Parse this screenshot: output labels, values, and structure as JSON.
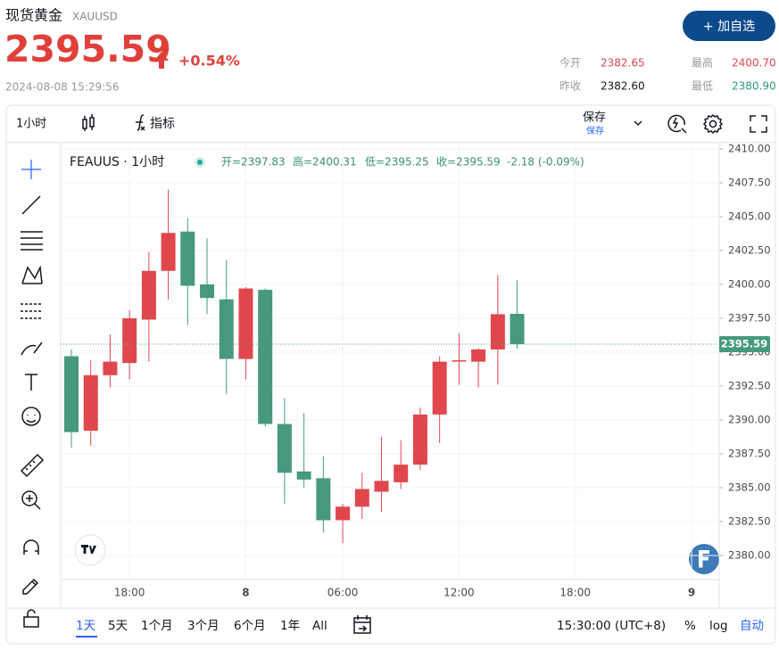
{
  "header": {
    "title": "现货黄金",
    "symbol": "XAUUSD",
    "price": "2395.59",
    "change": "+0.54%",
    "datetime": "2024-08-08 15:29:56",
    "button": "+ 加自选",
    "stats": [
      {
        "label": "今开",
        "value": "2382.65"
      },
      {
        "label": "最高",
        "value": "2400.70"
      },
      {
        "label": "昨收",
        "value": "2382.60"
      },
      {
        "label": "最低",
        "value": "2380.90"
      }
    ]
  },
  "toolbar": {
    "interval": "1小时",
    "indicators": "指标",
    "save": "保存",
    "save_sub": "保存"
  },
  "chart_data": {
    "type": "candlestick",
    "title": "FEAUUS · 1小时",
    "legend": {
      "open": "开=2397.83",
      "high": "高=2400.31",
      "low": "低=2395.25",
      "close": "收=2395.59",
      "change": "-2.18 (-0.09%)"
    },
    "categories": [
      null,
      null,
      null,
      "18:00",
      null,
      null,
      null,
      null,
      null,
      "8",
      null,
      null,
      null,
      null,
      "06:00",
      null,
      null,
      null,
      null,
      null,
      "12:00",
      null,
      null,
      null,
      null,
      null,
      "18:00",
      null,
      null,
      null,
      null,
      null,
      "9"
    ],
    "open": [
      2394.7,
      2389.2,
      2393.3,
      2394.2,
      2397.4,
      2401.0,
      2403.9,
      2400.0,
      2398.9,
      2394.5,
      2399.6,
      2389.7,
      2386.2,
      2385.7,
      2382.6,
      2383.6,
      2384.7,
      2385.4,
      2386.7,
      2390.4,
      2394.3,
      2394.3,
      2395.2,
      2397.83,
      null,
      null,
      null,
      null,
      null,
      null,
      null,
      null,
      null
    ],
    "high": [
      2395.2,
      2394.4,
      2396.3,
      2398.1,
      2402.4,
      2407.0,
      2404.9,
      2403.4,
      2401.8,
      2399.8,
      2399.7,
      2391.6,
      2390.5,
      2387.3,
      2383.8,
      2386.1,
      2388.75,
      2388.5,
      2390.9,
      2394.7,
      2396.4,
      2395.3,
      2400.7,
      2400.31,
      null,
      null,
      null,
      null,
      null,
      null,
      null,
      null,
      null
    ],
    "low": [
      2387.96,
      2388.1,
      2392.4,
      2393.0,
      2394.3,
      2398.9,
      2397.0,
      2397.8,
      2391.9,
      2393.0,
      2389.5,
      2383.8,
      2385.0,
      2381.7,
      2380.9,
      2382.7,
      2383.2,
      2384.9,
      2386.3,
      2388.3,
      2392.6,
      2392.4,
      2392.6,
      2395.25,
      null,
      null,
      null,
      null,
      null,
      null,
      null,
      null,
      null
    ],
    "close": [
      2389.1,
      2393.3,
      2394.3,
      2397.5,
      2401.0,
      2403.8,
      2399.9,
      2399.0,
      2394.5,
      2399.7,
      2389.7,
      2386.1,
      2385.6,
      2382.6,
      2383.6,
      2384.9,
      2385.5,
      2386.7,
      2390.4,
      2394.3,
      2394.4,
      2395.2,
      2397.8,
      2395.59,
      null,
      null,
      null,
      null,
      null,
      null,
      null,
      null,
      null
    ],
    "ylim": [
      2378.22,
      2410.46
    ],
    "yticks": [
      {
        "value": 2410,
        "label": "2410.00"
      },
      {
        "value": 2407.5,
        "label": "2407.50"
      },
      {
        "value": 2405,
        "label": "2405.00"
      },
      {
        "value": 2402.5,
        "label": "2402.50"
      },
      {
        "value": 2400,
        "label": "2400.00"
      },
      {
        "value": 2397.5,
        "label": "2397.50"
      },
      {
        "value": 2395,
        "label": "2395.00"
      },
      {
        "value": 2392.5,
        "label": "2392.50"
      },
      {
        "value": 2390,
        "label": "2390.00"
      },
      {
        "value": 2387.5,
        "label": "2387.50"
      },
      {
        "value": 2385,
        "label": "2385.00"
      },
      {
        "value": 2382.5,
        "label": "2382.50"
      },
      {
        "value": 2380,
        "label": "2380.00"
      }
    ],
    "last_price": 2395.59,
    "grid": true,
    "up_color": "#e0474c",
    "down_color": "#46997f"
  },
  "range_bar": {
    "ranges": [
      "1天",
      "5天",
      "1个月",
      "3个月",
      "6个月",
      "1年",
      "All"
    ],
    "time": "15:30:00 (UTC+8)",
    "percent": "%",
    "log": "log",
    "auto": "自动"
  }
}
